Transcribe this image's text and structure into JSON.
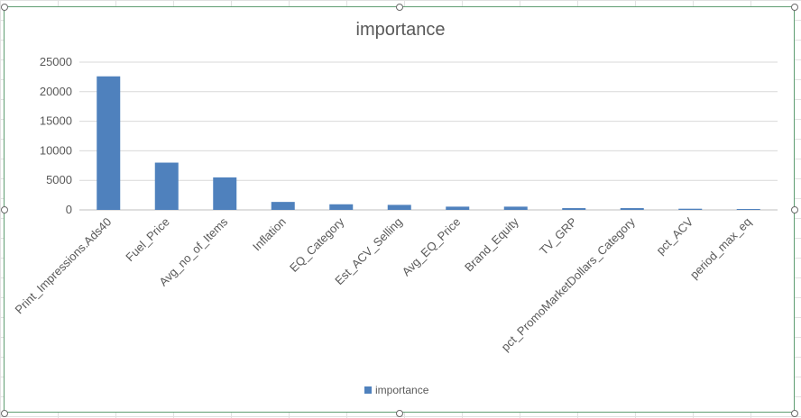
{
  "chart_data": {
    "type": "bar",
    "title": "importance",
    "xlabel": "",
    "ylabel": "",
    "ylim": [
      0,
      25000
    ],
    "yticks": [
      0,
      5000,
      10000,
      15000,
      20000,
      25000
    ],
    "grid": true,
    "legend_position": "bottom",
    "categories": [
      "Print_Impressions.Ads40",
      "Fuel_Price",
      "Avg_no_of_Items",
      "Inflation",
      "EQ_Category",
      "Est_ACV_Selling",
      "Avg_EQ_Price",
      "Brand_Equity",
      "TV_GRP",
      "pct_PromoMarketDollars_Category",
      "pct_ACV",
      "period_max_eq"
    ],
    "series": [
      {
        "name": "importance",
        "color": "#4f81bd",
        "values": [
          22600,
          8000,
          5500,
          1350,
          950,
          850,
          550,
          550,
          300,
          300,
          200,
          150
        ]
      }
    ]
  }
}
